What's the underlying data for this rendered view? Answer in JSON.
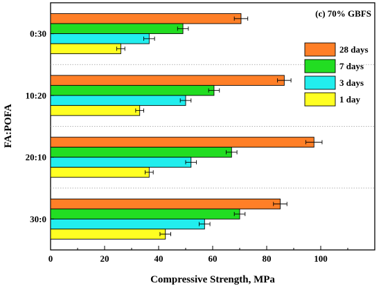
{
  "chart_data": {
    "type": "bar",
    "orientation": "horizontal",
    "annotation": "(c) 70% GBFS",
    "xlabel": "Compressive Strength, MPa",
    "ylabel": "FA:POFA",
    "xlim": [
      0,
      120
    ],
    "xticks": [
      0,
      20,
      40,
      60,
      80,
      100
    ],
    "categories": [
      "0:30",
      "10:20",
      "20:10",
      "30:0"
    ],
    "grid": "dotted separators between groups",
    "legend_position": "top-right",
    "series": [
      {
        "name": "28 days",
        "color": "#FF7F27",
        "values": [
          70.5,
          86.5,
          97.5,
          85.0
        ],
        "errors": [
          2.5,
          2.5,
          3.0,
          2.5
        ]
      },
      {
        "name": "7 days",
        "color": "#22DD22",
        "values": [
          49.0,
          60.5,
          67.0,
          70.0
        ],
        "errors": [
          2.0,
          2.0,
          2.0,
          2.0
        ]
      },
      {
        "name": "3 days",
        "color": "#22EEEE",
        "values": [
          36.5,
          50.0,
          52.0,
          57.0
        ],
        "errors": [
          2.0,
          2.0,
          2.0,
          2.0
        ]
      },
      {
        "name": "1 day",
        "color": "#FFFF22",
        "values": [
          26.0,
          33.0,
          36.5,
          42.5
        ],
        "errors": [
          1.5,
          1.5,
          1.5,
          2.0
        ]
      }
    ]
  }
}
